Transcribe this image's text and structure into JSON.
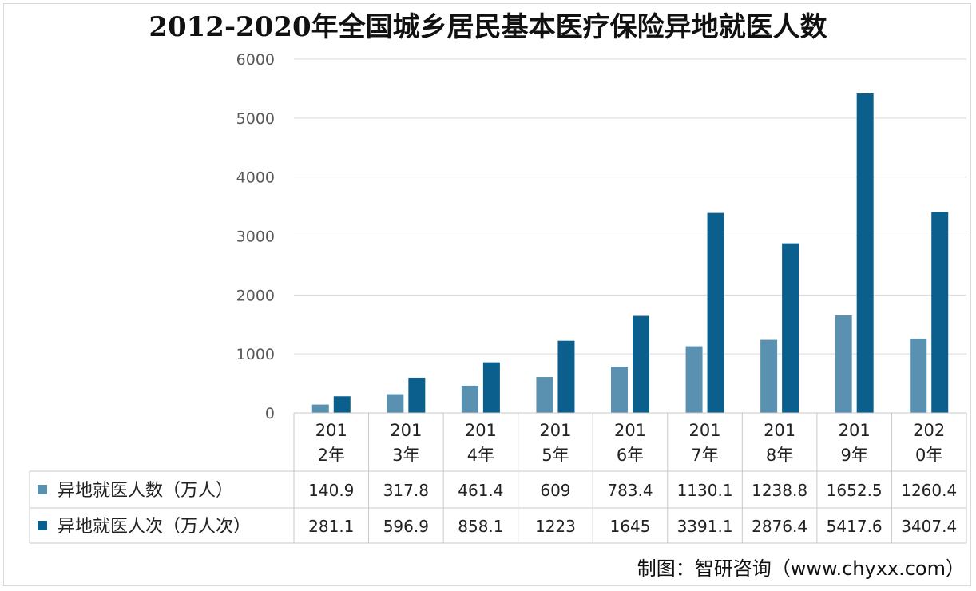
{
  "chart_data": {
    "type": "bar",
    "title": "2012-2020年全国城乡居民基本医疗保险异地就医人数",
    "categories": [
      "2012年",
      "2013年",
      "2014年",
      "2015年",
      "2016年",
      "2017年",
      "2018年",
      "2019年",
      "2020年"
    ],
    "category_lines": [
      [
        "201",
        "2年"
      ],
      [
        "201",
        "3年"
      ],
      [
        "201",
        "4年"
      ],
      [
        "201",
        "5年"
      ],
      [
        "201",
        "6年"
      ],
      [
        "201",
        "7年"
      ],
      [
        "201",
        "8年"
      ],
      [
        "201",
        "9年"
      ],
      [
        "202",
        "0年"
      ]
    ],
    "series": [
      {
        "name": "异地就医人数（万人）",
        "color": "#5b91b0",
        "values": [
          140.9,
          317.8,
          461.4,
          609,
          783.4,
          1130.1,
          1238.8,
          1652.5,
          1260.4
        ],
        "labels": [
          "140.9",
          "317.8",
          "461.4",
          "609",
          "783.4",
          "1130.1",
          "1238.8",
          "1652.5",
          "1260.4"
        ]
      },
      {
        "name": "异地就医人次（万人次）",
        "color": "#0b5f8c",
        "values": [
          281.1,
          596.9,
          858.1,
          1223,
          1645,
          3391.1,
          2876.4,
          5417.6,
          3407.4
        ],
        "labels": [
          "281.1",
          "596.9",
          "858.1",
          "1223",
          "1645",
          "3391.1",
          "2876.4",
          "5417.6",
          "3407.4"
        ]
      }
    ],
    "ylim": [
      0,
      6000
    ],
    "yticks": [
      "0",
      "1000",
      "2000",
      "3000",
      "4000",
      "5000",
      "6000"
    ],
    "grid": true,
    "legend": "data-table-below"
  },
  "source_note": "制图：智研咨询（www.chyxx.com）"
}
